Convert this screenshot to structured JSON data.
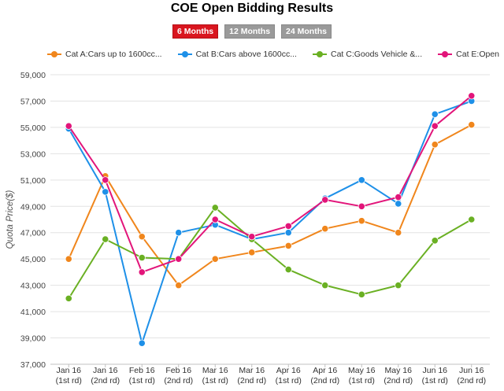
{
  "title": "COE Open Bidding Results",
  "range_buttons": [
    {
      "label": "6 Months",
      "active": true
    },
    {
      "label": "12 Months",
      "active": false
    },
    {
      "label": "24 Months",
      "active": false
    }
  ],
  "colors": {
    "cat_a": "#f0861c",
    "cat_b": "#1e90e8",
    "cat_c": "#6ab023",
    "cat_e": "#e2157a",
    "grid": "#e3e3e3",
    "axis": "#c0c0c0"
  },
  "chart_data": {
    "type": "line",
    "title": "COE Open Bidding Results",
    "xlabel": "",
    "ylabel": "Quota Price($)",
    "ylim": [
      37000,
      59000
    ],
    "yticks": [
      37000,
      39000,
      41000,
      43000,
      45000,
      47000,
      49000,
      51000,
      53000,
      55000,
      57000,
      59000
    ],
    "ytick_labels": [
      "37,000",
      "39,000",
      "41,000",
      "43,000",
      "45,000",
      "47,000",
      "49,000",
      "51,000",
      "53,000",
      "55,000",
      "57,000",
      "59,000"
    ],
    "categories": [
      [
        "Jan 16",
        "(1st rd)"
      ],
      [
        "Jan 16",
        "(2nd rd)"
      ],
      [
        "Feb 16",
        "(1st rd)"
      ],
      [
        "Feb 16",
        "(2nd rd)"
      ],
      [
        "Mar 16",
        "(1st rd)"
      ],
      [
        "Mar 16",
        "(2nd rd)"
      ],
      [
        "Apr 16",
        "(1st rd)"
      ],
      [
        "Apr 16",
        "(2nd rd)"
      ],
      [
        "May 16",
        "(1st rd)"
      ],
      [
        "May 16",
        "(2nd rd)"
      ],
      [
        "Jun 16",
        "(1st rd)"
      ],
      [
        "Jun 16",
        "(2nd rd)"
      ]
    ],
    "legend_position": "top",
    "series": [
      {
        "name": "Cat A:Cars up to 1600cc...",
        "color_key": "cat_a",
        "values": [
          45000,
          51300,
          46700,
          43000,
          45000,
          45500,
          46000,
          47300,
          47900,
          47000,
          53700,
          55200
        ]
      },
      {
        "name": "Cat B:Cars above 1600cc...",
        "color_key": "cat_b",
        "values": [
          54900,
          50100,
          38600,
          47000,
          47600,
          46500,
          47000,
          49600,
          51000,
          49200,
          56000,
          57000
        ]
      },
      {
        "name": "Cat C:Goods Vehicle &...",
        "color_key": "cat_c",
        "values": [
          42000,
          46500,
          45100,
          45000,
          48900,
          46500,
          44200,
          43000,
          42300,
          43000,
          46400,
          48000
        ]
      },
      {
        "name": "Cat E:Open",
        "color_key": "cat_e",
        "values": [
          55100,
          51000,
          44000,
          45000,
          48000,
          46700,
          47500,
          49500,
          49000,
          49700,
          55100,
          57400
        ]
      }
    ]
  }
}
